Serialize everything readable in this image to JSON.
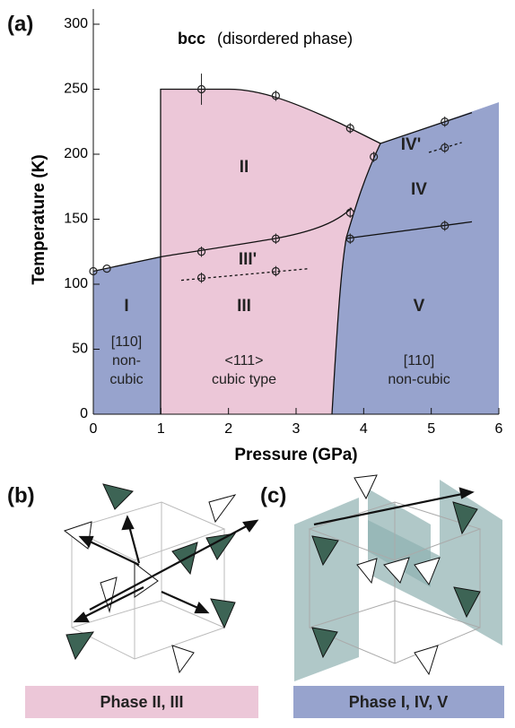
{
  "chart_data": {
    "type": "scatter",
    "panel_label": "(a)",
    "x_label": "Pressure (GPa)",
    "y_label": "Temperature (K)",
    "xlim": [
      0,
      6
    ],
    "xticks": [
      0,
      1,
      2,
      3,
      4,
      5,
      6
    ],
    "ylim": [
      0,
      300
    ],
    "yticks": [
      0,
      50,
      100,
      150,
      200,
      250,
      300
    ],
    "color": "#222",
    "x": [
      0,
      0.2,
      1.6,
      2.7,
      3.8,
      4.15,
      5.2,
      5.2,
      3.8,
      1.6,
      2.7,
      3.8,
      5.2,
      1.6,
      2.7
    ],
    "values": [
      110,
      112,
      250,
      245,
      220,
      198,
      225,
      205,
      155,
      125,
      135,
      135,
      145,
      105,
      110
    ],
    "errors": [
      0,
      0,
      12,
      4,
      4,
      4,
      4,
      4,
      4,
      4,
      4,
      4,
      4,
      4,
      4
    ],
    "annotations": {
      "bcc": "bcc",
      "bcc_note": "(disordered phase)",
      "II": "II",
      "III_prime": "III'",
      "III": "III",
      "IV_prime": "IV'",
      "IV": "IV",
      "V": "V",
      "I": "I",
      "I_note": [
        "[110]",
        "non-",
        "cubic"
      ],
      "III_note": [
        "<111>",
        "cubic type"
      ],
      "V_note": [
        "[110]",
        "non-cubic"
      ]
    }
  },
  "panels": [
    {
      "label": "(b)",
      "caption": "Phase II, III"
    },
    {
      "label": "(c)",
      "caption": "Phase I, IV, V"
    }
  ]
}
